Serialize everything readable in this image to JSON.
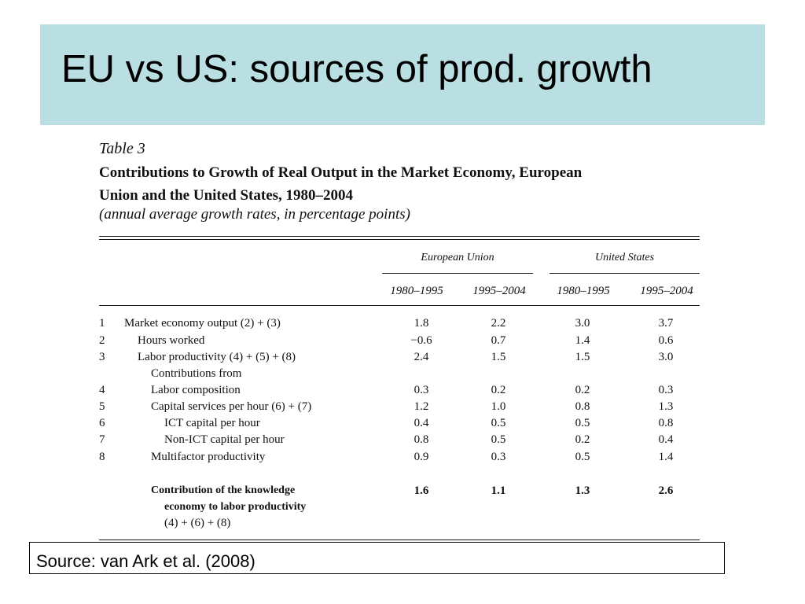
{
  "slide": {
    "title": "EU vs US: sources of prod. growth",
    "source": "Source: van Ark et al. (2008)"
  },
  "table": {
    "label": "Table 3",
    "title_line1": "Contributions to Growth of Real Output in the Market Economy, European",
    "title_line2": "Union and the United States, 1980–2004",
    "note": "(annual average growth rates, in percentage points)",
    "groups": [
      "European Union",
      "United States"
    ],
    "periods": [
      "1980–1995",
      "1995–2004",
      "1980–1995",
      "1995–2004"
    ],
    "rows": [
      {
        "num": "1",
        "label": "Market economy output (2) + (3)",
        "values": [
          "1.8",
          "2.2",
          "3.0",
          "3.7"
        ]
      },
      {
        "num": "2",
        "label": "Hours worked",
        "values": [
          "−0.6",
          "0.7",
          "1.4",
          "0.6"
        ]
      },
      {
        "num": "3",
        "label": "Labor productivity (4) + (5) + (8)",
        "values": [
          "2.4",
          "1.5",
          "1.5",
          "3.0"
        ]
      },
      {
        "num": "",
        "label": "Contributions from",
        "values": [
          "",
          "",
          "",
          ""
        ]
      },
      {
        "num": "4",
        "label": "Labor composition",
        "values": [
          "0.3",
          "0.2",
          "0.2",
          "0.3"
        ]
      },
      {
        "num": "5",
        "label": "Capital services per hour (6) + (7)",
        "values": [
          "1.2",
          "1.0",
          "0.8",
          "1.3"
        ]
      },
      {
        "num": "6",
        "label": "ICT capital per hour",
        "values": [
          "0.4",
          "0.5",
          "0.5",
          "0.8"
        ]
      },
      {
        "num": "7",
        "label": "Non-ICT capital per hour",
        "values": [
          "0.8",
          "0.5",
          "0.2",
          "0.4"
        ]
      },
      {
        "num": "8",
        "label": "Multifactor productivity",
        "values": [
          "0.9",
          "0.3",
          "0.5",
          "1.4"
        ]
      }
    ],
    "summary": {
      "label_line1": "Contribution of the knowledge",
      "label_line2": "economy to labor productivity",
      "label_line3": "(4) + (6) + (8)",
      "values": [
        "1.6",
        "1.1",
        "1.3",
        "2.6"
      ]
    }
  }
}
